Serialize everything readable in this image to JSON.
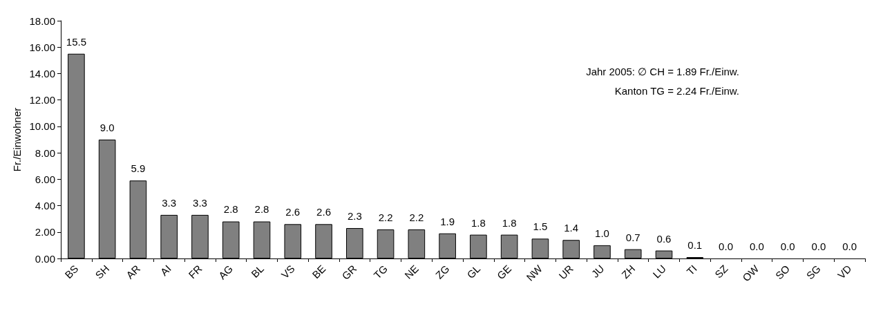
{
  "chart_data": {
    "type": "bar",
    "ylabel": "Fr./Einwohner",
    "categories": [
      "BS",
      "SH",
      "AR",
      "AI",
      "FR",
      "AG",
      "BL",
      "VS",
      "BE",
      "GR",
      "TG",
      "NE",
      "ZG",
      "GL",
      "GE",
      "NW",
      "UR",
      "JU",
      "ZH",
      "LU",
      "TI",
      "SZ",
      "OW",
      "SO",
      "SG",
      "VD"
    ],
    "values": [
      15.5,
      9.0,
      5.9,
      3.3,
      3.3,
      2.8,
      2.8,
      2.6,
      2.6,
      2.3,
      2.2,
      2.2,
      1.9,
      1.8,
      1.8,
      1.5,
      1.4,
      1.0,
      0.7,
      0.6,
      0.1,
      0.0,
      0.0,
      0.0,
      0.0,
      0.0
    ],
    "value_labels": [
      "15.5",
      "9.0",
      "5.9",
      "3.3",
      "3.3",
      "2.8",
      "2.8",
      "2.6",
      "2.6",
      "2.3",
      "2.2",
      "2.2",
      "1.9",
      "1.8",
      "1.8",
      "1.5",
      "1.4",
      "1.0",
      "0.7",
      "0.6",
      "0.1",
      "0.0",
      "0.0",
      "0.0",
      "0.0",
      "0.0"
    ],
    "color": "#808080",
    "ylim": [
      0,
      18
    ],
    "yticks": [
      {
        "value": 0,
        "label": "0.00"
      },
      {
        "value": 2,
        "label": "2.00"
      },
      {
        "value": 4,
        "label": "4.00"
      },
      {
        "value": 6,
        "label": "6.00"
      },
      {
        "value": 8,
        "label": "8.00"
      },
      {
        "value": 10,
        "label": "10.00"
      },
      {
        "value": 12,
        "label": "12.00"
      },
      {
        "value": 14,
        "label": "14.00"
      },
      {
        "value": 16,
        "label": "16.00"
      },
      {
        "value": 18,
        "label": "18.00"
      }
    ],
    "annotations": [
      "Jahr 2005: ∅ CH = 1.89 Fr./Einw.",
      "Kanton TG = 2.24 Fr./Einw."
    ],
    "grid": false
  }
}
